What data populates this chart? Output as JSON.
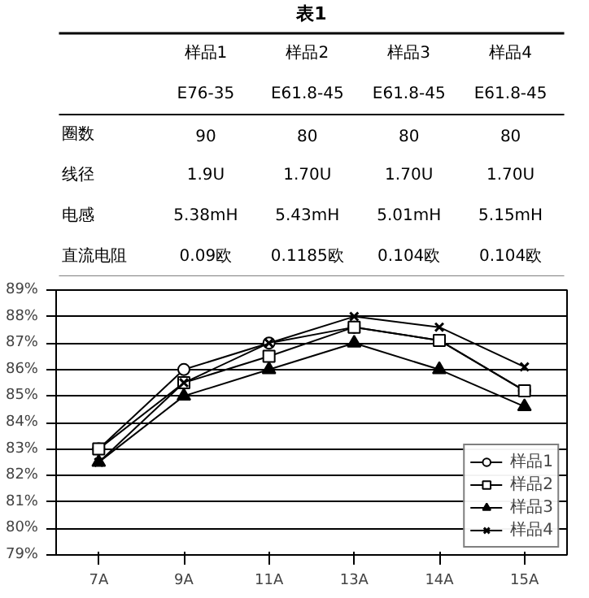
{
  "chart_data": [
    {
      "type": "other",
      "title": "表1",
      "categories": [
        "样品1",
        "样品2",
        "样品3",
        "样品4"
      ],
      "y_categories": [
        null,
        "圈数",
        "线径",
        "电感",
        "直流电阻"
      ],
      "cell_labels": [
        [
          "E76-35",
          "E61.8-45",
          "E61.8-45",
          "E61.8-45"
        ],
        [
          "90",
          "80",
          "80",
          "80"
        ],
        [
          "1.9U",
          "1.70U",
          "1.70U",
          "1.70U"
        ],
        [
          "5.38mH",
          "5.43mH",
          "5.01mH",
          "5.15mH"
        ],
        [
          "0.09欧",
          "0.1185欧",
          "0.104欧",
          "0.104欧"
        ]
      ]
    },
    {
      "type": "line",
      "categories": [
        "7A",
        "9A",
        "11A",
        "13A",
        "14A",
        "15A"
      ],
      "ylim": [
        79,
        89
      ],
      "yticks": [
        {
          "value": 79,
          "label": "79%"
        },
        {
          "value": 80,
          "label": "80%"
        },
        {
          "value": 81,
          "label": "81%"
        },
        {
          "value": 82,
          "label": "82%"
        },
        {
          "value": 83,
          "label": "83%"
        },
        {
          "value": 84,
          "label": "84%"
        },
        {
          "value": 85,
          "label": "85%"
        },
        {
          "value": 86,
          "label": "86%"
        },
        {
          "value": 87,
          "label": "87%"
        },
        {
          "value": 88,
          "label": "88%"
        },
        {
          "value": 89,
          "label": "89%"
        }
      ],
      "grid": "y",
      "legend": "bottom right",
      "series": [
        {
          "name": "样品1",
          "color": "#000000",
          "marker": "circle",
          "values": [
            83.0,
            86.0,
            87.0,
            87.6,
            87.1,
            85.2
          ]
        },
        {
          "name": "样品2",
          "color": "#000000",
          "marker": "square",
          "values": [
            83.0,
            85.5,
            86.5,
            87.6,
            87.1,
            85.2
          ]
        },
        {
          "name": "样品3",
          "color": "#000000",
          "marker": "triangle",
          "values": [
            82.5,
            85.0,
            86.0,
            87.0,
            86.0,
            84.6
          ]
        },
        {
          "name": "样品4",
          "color": "#000000",
          "marker": "cross",
          "values": [
            82.5,
            85.5,
            87.0,
            88.0,
            87.6,
            86.1
          ]
        }
      ]
    }
  ]
}
